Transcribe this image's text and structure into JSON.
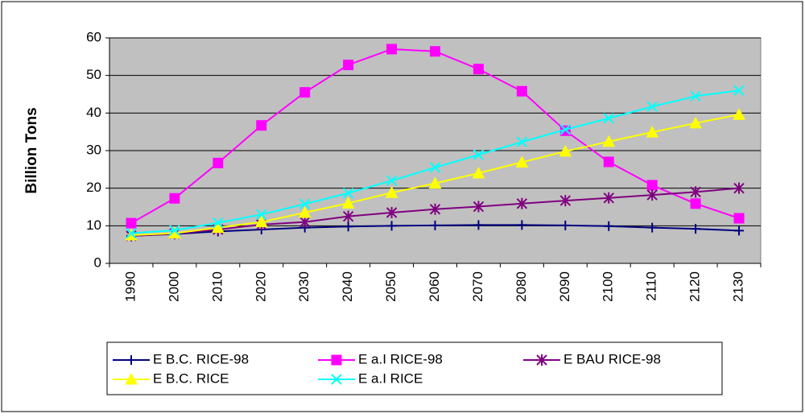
{
  "chart_data": {
    "type": "line",
    "y_label": "Billion Tons",
    "categories": [
      "1990",
      "2000",
      "2010",
      "2020",
      "2030",
      "2040",
      "2050",
      "2060",
      "2070",
      "2080",
      "2090",
      "2100",
      "2110",
      "2120",
      "2130"
    ],
    "series": [
      {
        "name": "E B.C. RICE-98",
        "color": "#000080",
        "marker": "plus",
        "values": [
          7.3,
          7.8,
          8.5,
          9.0,
          9.5,
          9.8,
          10.0,
          10.1,
          10.2,
          10.2,
          10.1,
          9.9,
          9.5,
          9.2,
          8.7
        ]
      },
      {
        "name": "E a.I RICE-98",
        "color": "#ff00ff",
        "marker": "square",
        "values": [
          10.7,
          17.3,
          26.7,
          36.7,
          45.5,
          52.8,
          57.0,
          56.4,
          51.7,
          45.8,
          35.3,
          27.0,
          20.8,
          15.9,
          12.0
        ]
      },
      {
        "name": "E BAU RICE-98",
        "color": "#800080",
        "marker": "star",
        "values": [
          7.3,
          7.9,
          9.0,
          10.3,
          11.0,
          12.5,
          13.5,
          14.4,
          15.1,
          15.9,
          16.7,
          17.4,
          18.2,
          19.0,
          20.0
        ]
      },
      {
        "name": "E B.C. RICE",
        "color": "#ffff00",
        "marker": "triangle",
        "values": [
          7.5,
          8.0,
          9.5,
          11.0,
          13.5,
          16.0,
          18.8,
          21.3,
          24.0,
          26.9,
          29.8,
          32.4,
          34.9,
          37.3,
          39.6
        ]
      },
      {
        "name": "E a.I RICE",
        "color": "#00ffff",
        "marker": "x",
        "values": [
          8.0,
          8.8,
          10.8,
          13.0,
          15.8,
          18.7,
          22.0,
          25.5,
          28.9,
          32.3,
          35.6,
          38.6,
          41.7,
          44.5,
          46.0
        ]
      }
    ],
    "ylim": [
      0,
      60
    ],
    "yticks": [
      0,
      10,
      20,
      30,
      40,
      50,
      60
    ],
    "grid": true,
    "legend": "bottom",
    "plot_background": "#c0c0c0"
  }
}
